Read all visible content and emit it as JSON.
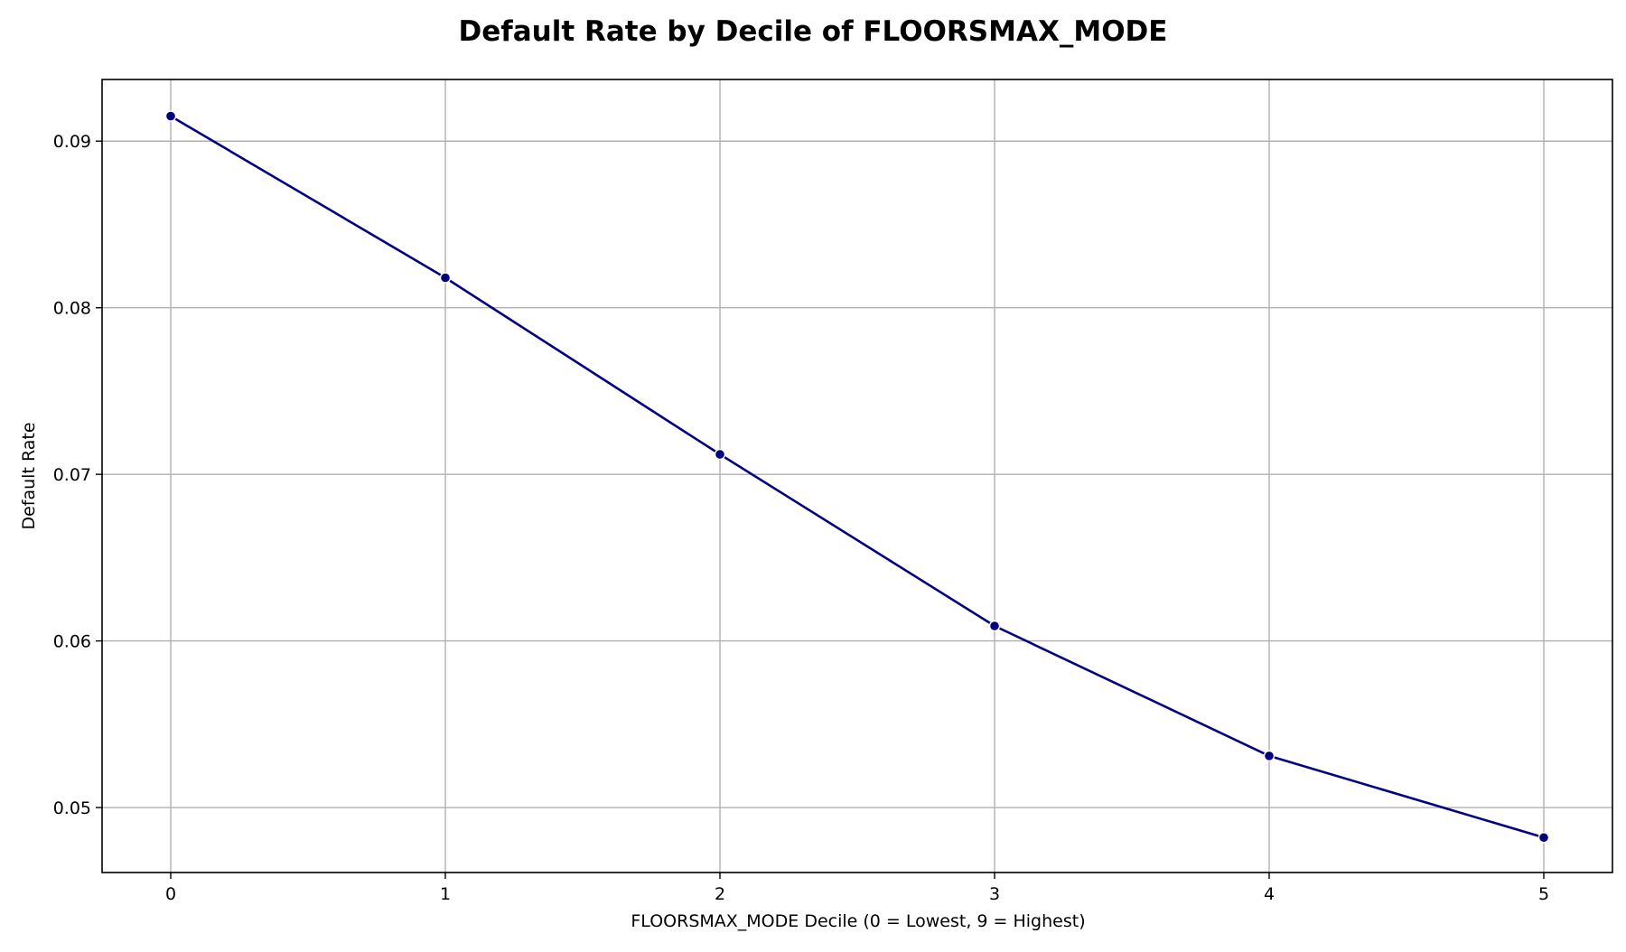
{
  "chart_data": {
    "type": "line",
    "title": "Default Rate by Decile of FLOORSMAX_MODE",
    "xlabel": "FLOORSMAX_MODE Decile (0 = Lowest, 9 = Highest)",
    "ylabel": "Default Rate",
    "x": [
      0,
      1,
      2,
      3,
      4,
      5
    ],
    "series": [
      {
        "values": [
          0.0915,
          0.0818,
          0.0712,
          0.0609,
          0.0531,
          0.0482
        ]
      }
    ],
    "xlim": [
      -0.25,
      5.25
    ],
    "ylim": [
      0.0461,
      0.0937
    ],
    "xticks": [
      "0",
      "1",
      "2",
      "3",
      "4",
      "5"
    ],
    "yticks": [
      "0.05",
      "0.06",
      "0.07",
      "0.08",
      "0.09"
    ],
    "grid": true,
    "colors": {
      "line": "#000080",
      "marker": "#000080",
      "marker_edge": "#ffffff",
      "grid": "#b0b0b0",
      "axes": "#000000"
    }
  }
}
